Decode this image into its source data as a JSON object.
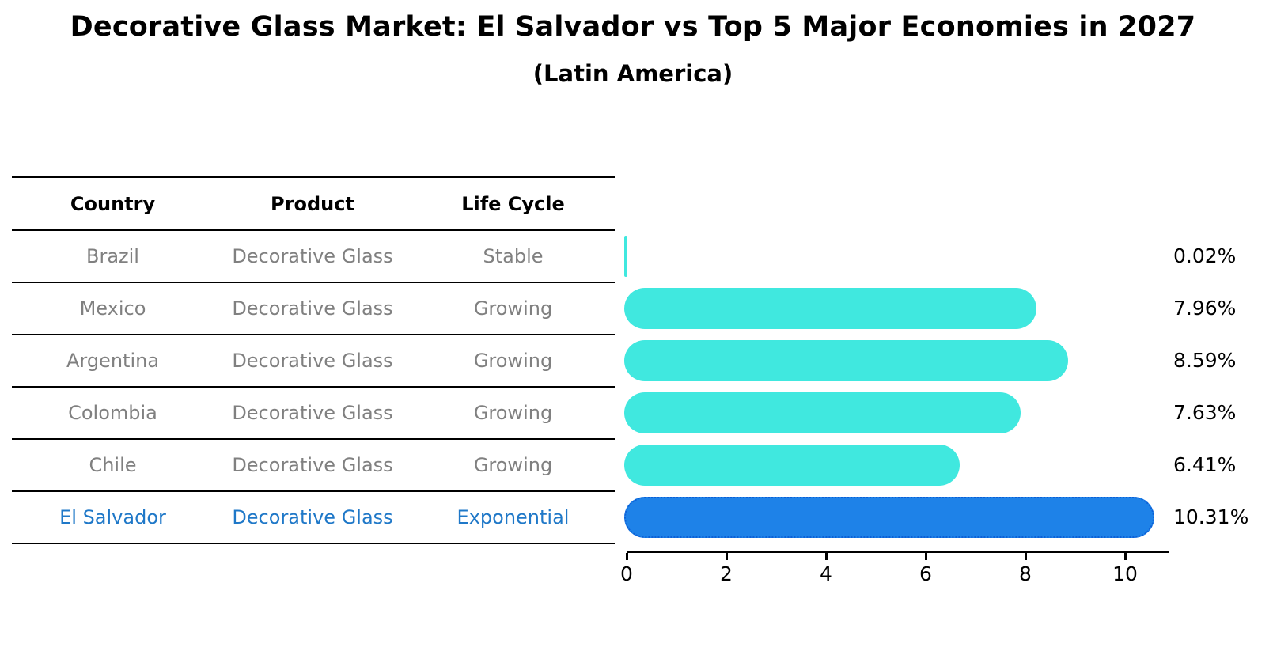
{
  "title": "Decorative Glass Market: El Salvador vs Top 5 Major Economies in 2027",
  "subtitle": "(Latin America)",
  "table": {
    "headers": [
      "Country",
      "Product",
      "Life Cycle"
    ],
    "rows": [
      {
        "country": "Brazil",
        "product": "Decorative Glass",
        "life_cycle": "Stable",
        "highlight": false
      },
      {
        "country": "Mexico",
        "product": "Decorative Glass",
        "life_cycle": "Growing",
        "highlight": false
      },
      {
        "country": "Argentina",
        "product": "Decorative Glass",
        "life_cycle": "Growing",
        "highlight": false
      },
      {
        "country": "Colombia",
        "product": "Decorative Glass",
        "life_cycle": "Growing",
        "highlight": false
      },
      {
        "country": "Chile",
        "product": "Decorative Glass",
        "life_cycle": "Growing",
        "highlight": false
      },
      {
        "country": "El Salvador",
        "product": "Decorative Glass",
        "life_cycle": "Exponential",
        "highlight": true
      }
    ]
  },
  "chart_data": {
    "type": "bar",
    "orientation": "horizontal",
    "categories": [
      "Brazil",
      "Mexico",
      "Argentina",
      "Colombia",
      "Chile",
      "El Salvador"
    ],
    "values": [
      0.02,
      7.96,
      8.59,
      7.63,
      6.41,
      10.31
    ],
    "value_labels": [
      "0.02%",
      "7.96%",
      "8.59%",
      "7.63%",
      "6.41%",
      "10.31%"
    ],
    "highlight_index": 5,
    "xlim": [
      0,
      10.87
    ],
    "xticks": [
      "0",
      "2",
      "4",
      "6",
      "8",
      "10"
    ],
    "xtick_values": [
      0,
      2,
      4,
      6,
      8,
      10
    ],
    "grid": false,
    "legend": false,
    "bar_color": "#40E8DF",
    "highlight_bar_color": "#1E82E8",
    "highlight_border_color": "#0C5FD6",
    "highlight_text_color": "#1f78c8",
    "label_color": "#000000",
    "table_text_color": "#808080"
  }
}
